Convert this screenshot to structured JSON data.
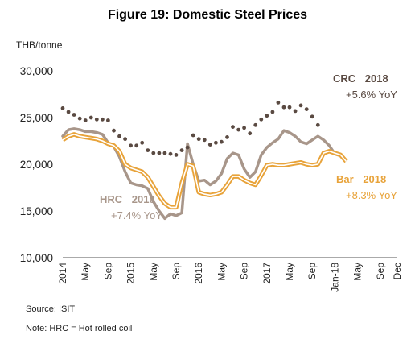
{
  "chart_data": {
    "type": "line",
    "title": "Figure 19: Domestic Steel Prices",
    "ylabel": "THB/tonne",
    "ylim": [
      10000,
      30000
    ],
    "yticks": [
      10000,
      15000,
      20000,
      25000,
      30000
    ],
    "ytick_labels": [
      "10,000",
      "15,000",
      "20,000",
      "25,000",
      "30,000"
    ],
    "xtick_labels": [
      {
        "i": 0,
        "label": "2014"
      },
      {
        "i": 4,
        "label": "May"
      },
      {
        "i": 8,
        "label": "Sep"
      },
      {
        "i": 12,
        "label": "2015"
      },
      {
        "i": 16,
        "label": "May"
      },
      {
        "i": 20,
        "label": "Sep"
      },
      {
        "i": 24,
        "label": "2016"
      },
      {
        "i": 28,
        "label": "May"
      },
      {
        "i": 32,
        "label": "Sep"
      },
      {
        "i": 36,
        "label": "2017"
      },
      {
        "i": 40,
        "label": "May"
      },
      {
        "i": 44,
        "label": "Sep"
      },
      {
        "i": 48,
        "label": "Jan-18"
      },
      {
        "i": 52,
        "label": "May"
      },
      {
        "i": 56,
        "label": "Sep"
      },
      {
        "i": 59,
        "label": "Dec"
      }
    ],
    "grid": false,
    "series": [
      {
        "name": "CRC",
        "style": "dotted",
        "color": "#5a4a42",
        "values": [
          26000,
          25600,
          25300,
          24900,
          24700,
          25000,
          24800,
          24800,
          24700,
          23600,
          23000,
          22700,
          22000,
          22000,
          22300,
          21500,
          21200,
          21200,
          21200,
          21100,
          21000,
          21500,
          21800,
          23100,
          22700,
          22600,
          22100,
          22300,
          22400,
          22900,
          24000,
          23700,
          23900,
          23300,
          24200,
          24800,
          25200,
          25600,
          26600,
          26100,
          26100,
          25700,
          26300,
          25900,
          25100,
          24200
        ]
      },
      {
        "name": "HRC",
        "style": "solid",
        "color": "#a8968a",
        "values": [
          23000,
          23700,
          23800,
          23700,
          23500,
          23500,
          23400,
          23200,
          22300,
          21900,
          20800,
          19200,
          18000,
          17800,
          17700,
          17400,
          16000,
          15000,
          14200,
          14700,
          14500,
          14800,
          22200,
          20000,
          18200,
          18300,
          17800,
          18200,
          19000,
          20600,
          21200,
          21000,
          19500,
          18600,
          19200,
          21000,
          21800,
          22300,
          22700,
          23600,
          23400,
          23000,
          22400,
          22200,
          22600,
          23000,
          22600,
          22000,
          21100,
          20900
        ]
      },
      {
        "name": "Bar",
        "style": "double",
        "color": "#e8a33a",
        "values": [
          22600,
          23000,
          23200,
          23000,
          22900,
          22800,
          22700,
          22500,
          22200,
          22000,
          21400,
          20000,
          19600,
          19400,
          19200,
          18600,
          17600,
          16600,
          15800,
          15400,
          15400,
          18000,
          20000,
          19800,
          17000,
          16800,
          16700,
          16800,
          17000,
          17800,
          18700,
          18700,
          18300,
          18000,
          17800,
          18800,
          19900,
          20000,
          19900,
          19900,
          20000,
          20100,
          20200,
          20000,
          19900,
          20000,
          21200,
          21400,
          21200,
          21000,
          20300
        ]
      }
    ],
    "annotations": [
      {
        "series": "CRC",
        "name": "CRC",
        "year": "2018",
        "yoy": "+5.6% YoY"
      },
      {
        "series": "HRC",
        "name": "HRC",
        "year": "2018",
        "yoy": "+7.4% YoY"
      },
      {
        "series": "Bar",
        "name": "Bar",
        "year": "2018",
        "yoy": "+8.3% YoY"
      }
    ]
  },
  "notes": {
    "source": "Source: ISIT",
    "note": "Note: HRC = Hot rolled coil"
  },
  "colors": {
    "crc": "#5a4a42",
    "hrc": "#a8968a",
    "bar": "#e8a33a",
    "bar_inner": "#ffffff",
    "axis": "#555555"
  }
}
